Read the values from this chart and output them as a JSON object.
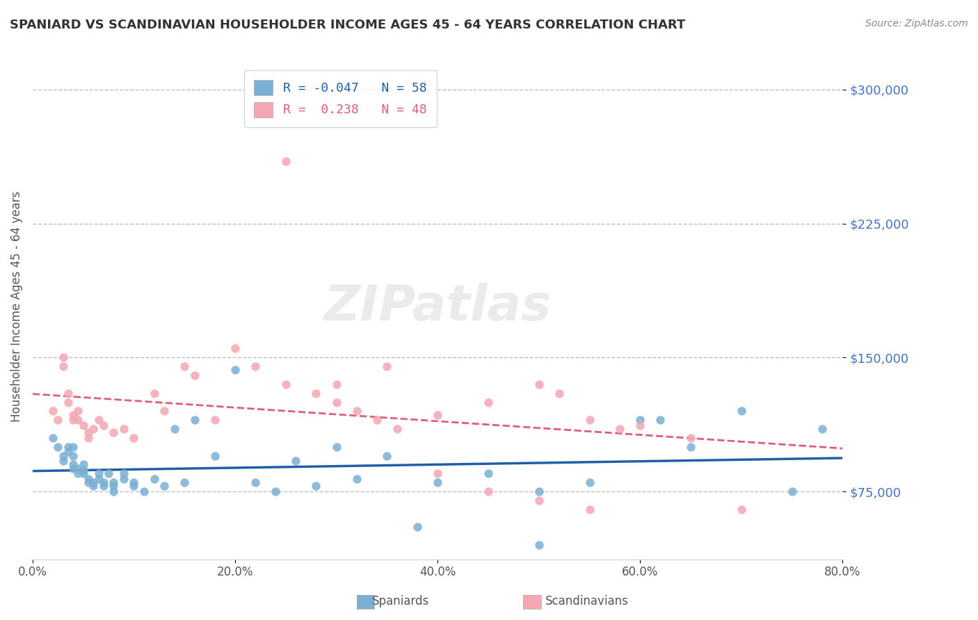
{
  "title": "SPANIARD VS SCANDINAVIAN HOUSEHOLDER INCOME AGES 45 - 64 YEARS CORRELATION CHART",
  "source": "Source: ZipAtlas.com",
  "xlabel": "",
  "ylabel": "Householder Income Ages 45 - 64 years",
  "watermark": "ZIPatlas",
  "xlim": [
    0.0,
    0.8
  ],
  "ylim": [
    37000,
    320000
  ],
  "yticks": [
    75000,
    150000,
    225000,
    300000
  ],
  "ytick_labels": [
    "$75,000",
    "$150,000",
    "$225,000",
    "$300,000"
  ],
  "xticks": [
    0.0,
    0.2,
    0.4,
    0.6,
    0.8
  ],
  "xtick_labels": [
    "0.0%",
    "20.0%",
    "40.0%",
    "60.0%",
    "80.0%"
  ],
  "blue_R": -0.047,
  "blue_N": 58,
  "pink_R": 0.238,
  "pink_N": 48,
  "blue_color": "#7BAFD4",
  "pink_color": "#F4A7B2",
  "blue_line_color": "#1F5FA6",
  "pink_line_color": "#E05C7A",
  "title_color": "#333333",
  "axis_label_color": "#555555",
  "ytick_color": "#4472C4",
  "xtick_color": "#555555",
  "grid_color": "#BBBBCC",
  "background_color": "#FFFFFF",
  "blue_x": [
    0.02,
    0.025,
    0.03,
    0.03,
    0.035,
    0.035,
    0.04,
    0.04,
    0.04,
    0.04,
    0.045,
    0.045,
    0.05,
    0.05,
    0.05,
    0.055,
    0.055,
    0.06,
    0.06,
    0.065,
    0.065,
    0.07,
    0.07,
    0.075,
    0.08,
    0.08,
    0.08,
    0.09,
    0.09,
    0.1,
    0.1,
    0.11,
    0.12,
    0.13,
    0.14,
    0.15,
    0.16,
    0.18,
    0.2,
    0.22,
    0.24,
    0.26,
    0.3,
    0.35,
    0.4,
    0.45,
    0.5,
    0.55,
    0.6,
    0.62,
    0.65,
    0.7,
    0.75,
    0.78,
    0.28,
    0.32,
    0.38,
    0.5
  ],
  "blue_y": [
    105000,
    100000,
    95000,
    92000,
    100000,
    97000,
    88000,
    90000,
    95000,
    100000,
    85000,
    88000,
    90000,
    87000,
    85000,
    80000,
    82000,
    80000,
    78000,
    85000,
    82000,
    80000,
    78000,
    85000,
    75000,
    78000,
    80000,
    82000,
    85000,
    78000,
    80000,
    75000,
    82000,
    78000,
    110000,
    80000,
    115000,
    95000,
    143000,
    80000,
    75000,
    92000,
    100000,
    95000,
    80000,
    85000,
    75000,
    80000,
    115000,
    115000,
    100000,
    120000,
    75000,
    110000,
    78000,
    82000,
    55000,
    45000
  ],
  "pink_x": [
    0.02,
    0.025,
    0.03,
    0.03,
    0.035,
    0.035,
    0.04,
    0.04,
    0.045,
    0.045,
    0.05,
    0.055,
    0.055,
    0.06,
    0.065,
    0.07,
    0.08,
    0.09,
    0.1,
    0.12,
    0.13,
    0.15,
    0.16,
    0.18,
    0.2,
    0.22,
    0.25,
    0.28,
    0.3,
    0.32,
    0.34,
    0.36,
    0.4,
    0.45,
    0.5,
    0.52,
    0.55,
    0.58,
    0.6,
    0.65,
    0.7,
    0.25,
    0.3,
    0.35,
    0.4,
    0.45,
    0.5,
    0.55
  ],
  "pink_y": [
    120000,
    115000,
    150000,
    145000,
    125000,
    130000,
    115000,
    118000,
    120000,
    115000,
    112000,
    108000,
    105000,
    110000,
    115000,
    112000,
    108000,
    110000,
    105000,
    130000,
    120000,
    145000,
    140000,
    115000,
    155000,
    145000,
    135000,
    130000,
    125000,
    120000,
    115000,
    110000,
    118000,
    125000,
    135000,
    130000,
    115000,
    110000,
    112000,
    105000,
    65000,
    260000,
    135000,
    145000,
    85000,
    75000,
    70000,
    65000
  ]
}
